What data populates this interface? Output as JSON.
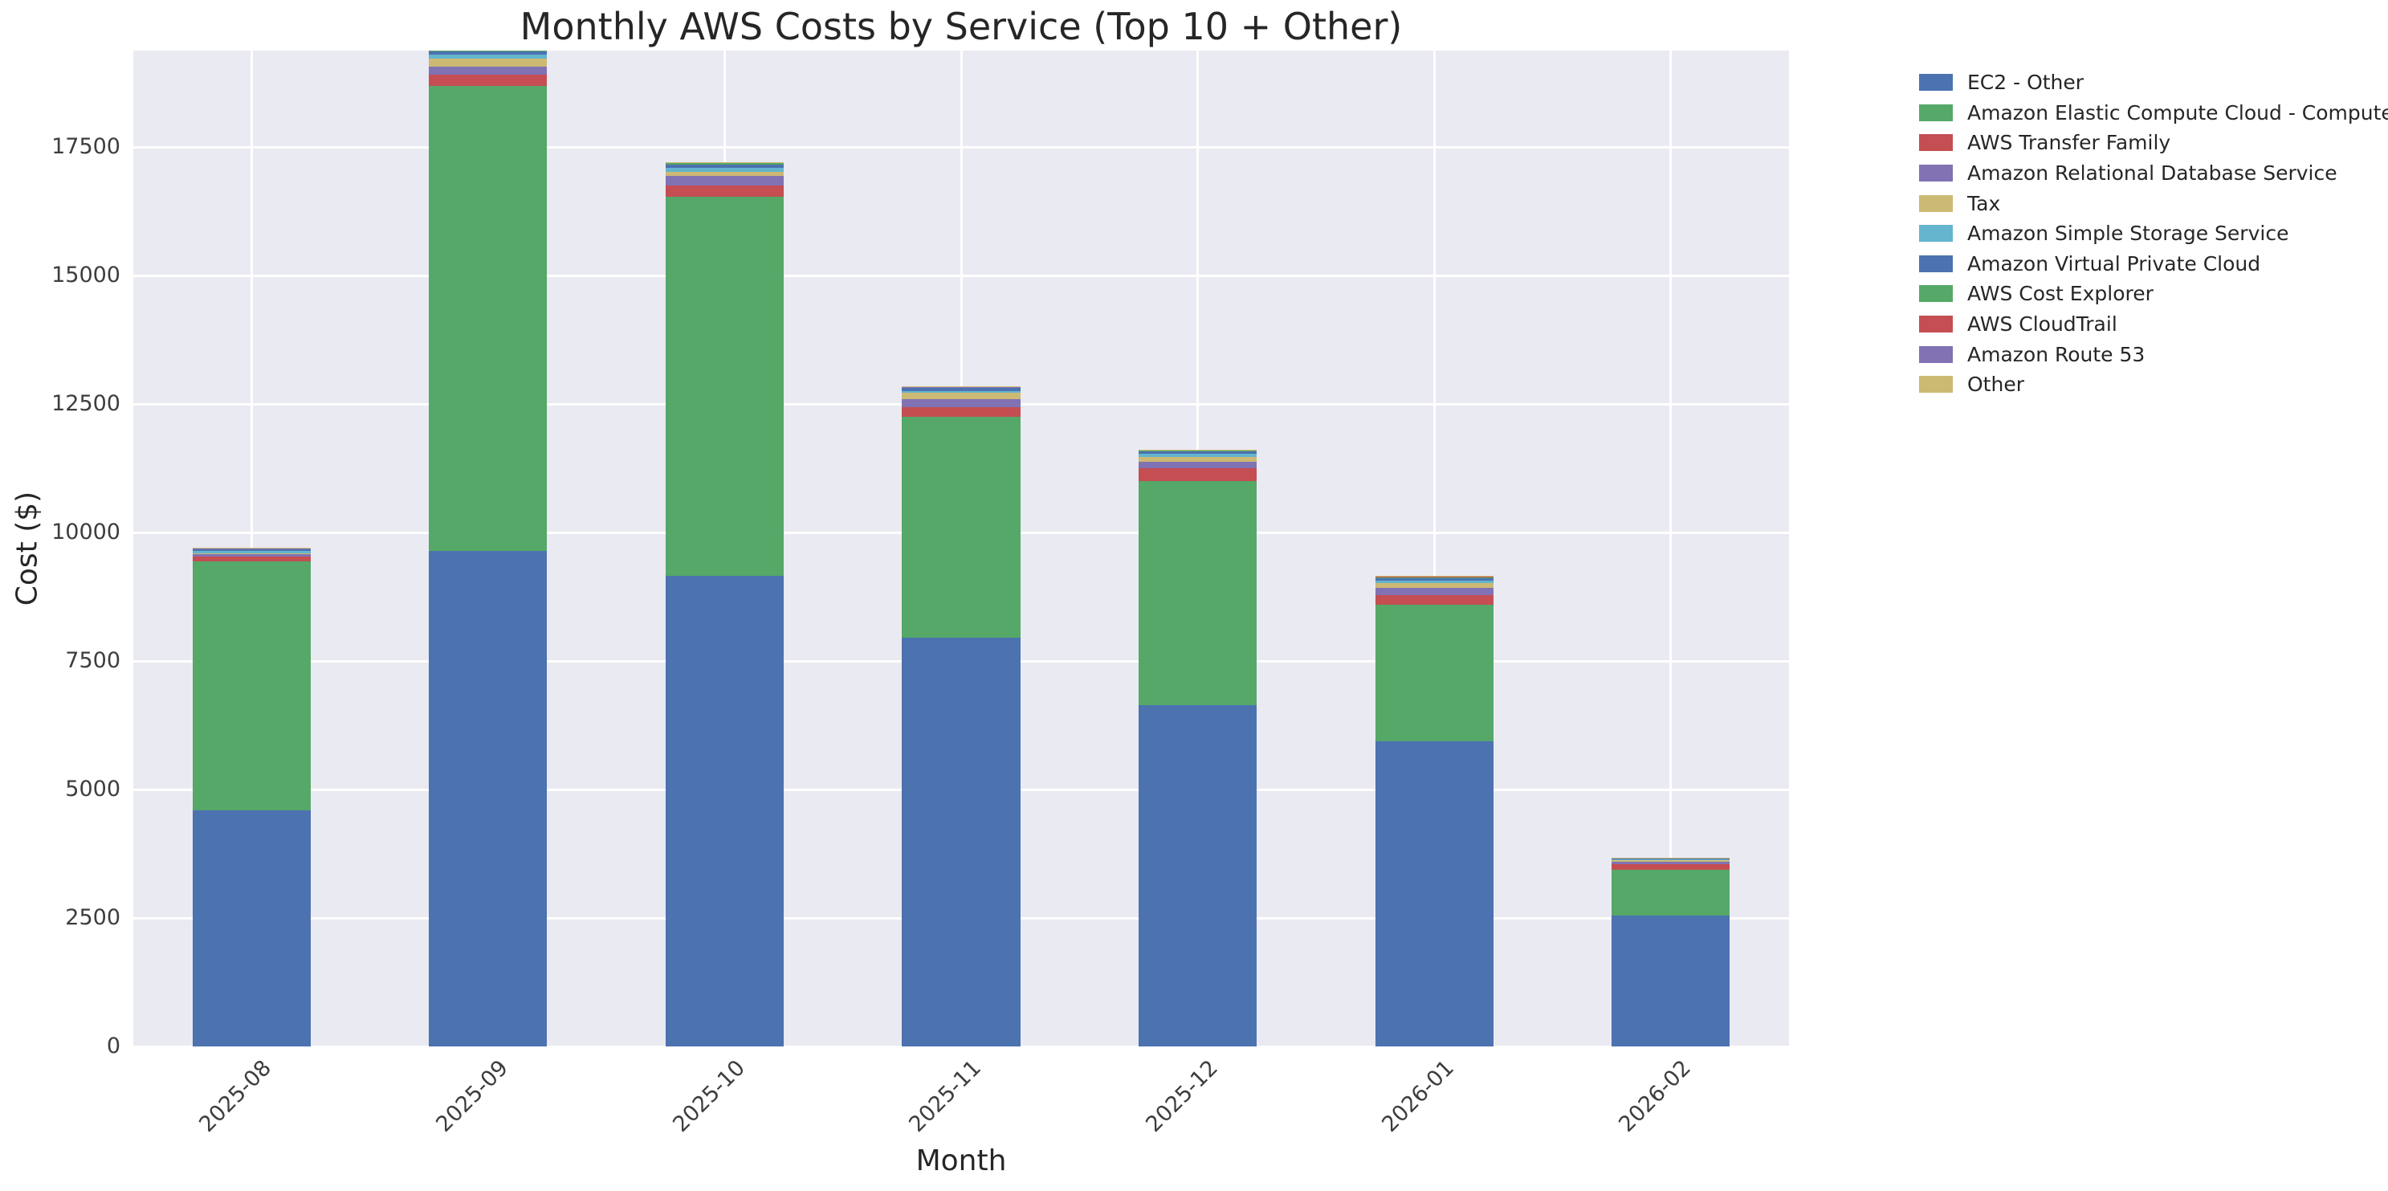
{
  "chart_data": {
    "type": "bar",
    "stacked": true,
    "title": "Monthly AWS Costs by Service (Top 10 + Other)",
    "xlabel": "Month",
    "ylabel": "Cost ($)",
    "categories": [
      "2025-08",
      "2025-09",
      "2025-10",
      "2025-11",
      "2025-12",
      "2026-01",
      "2026-02"
    ],
    "series": [
      {
        "name": "EC2 - Other",
        "color": "#4c72b0",
        "values": [
          4590,
          9640,
          9160,
          7960,
          6645,
          5930,
          2547
        ]
      },
      {
        "name": "Amazon Elastic Compute Cloud - Compute",
        "color": "#55a868",
        "values": [
          4843,
          9052,
          7367,
          4285,
          4360,
          2659,
          886
        ]
      },
      {
        "name": "AWS Transfer Family",
        "color": "#c44e52",
        "values": [
          94,
          209,
          228,
          188,
          240,
          198,
          114
        ]
      },
      {
        "name": "Amazon Relational Database Service",
        "color": "#8172b3",
        "values": [
          72,
          156,
          178,
          156,
          125,
          140,
          52
        ]
      },
      {
        "name": "Tax",
        "color": "#ccb974",
        "values": [
          2,
          161,
          88,
          125,
          104,
          88,
          31
        ]
      },
      {
        "name": "Amazon Simple Storage Service",
        "color": "#64b5cd",
        "values": [
          42,
          73,
          69,
          36,
          52,
          42,
          8
        ]
      },
      {
        "name": "Amazon Virtual Private Cloud",
        "color": "#4c72b0",
        "values": [
          42,
          78,
          67,
          67,
          63,
          63,
          31
        ]
      },
      {
        "name": "AWS Cost Explorer",
        "color": "#55a868",
        "values": [
          5,
          8,
          36,
          8,
          8,
          2,
          2
        ]
      },
      {
        "name": "AWS CloudTrail",
        "color": "#c44e52",
        "values": [
          3,
          5,
          5,
          5,
          5,
          31,
          3
        ]
      },
      {
        "name": "Amazon Route 53",
        "color": "#8172b3",
        "values": [
          2,
          3,
          3,
          3,
          3,
          3,
          2
        ]
      },
      {
        "name": "Other",
        "color": "#ccb974",
        "values": [
          2,
          3,
          3,
          5,
          5,
          3,
          2
        ]
      }
    ],
    "ytick_labels": [
      "0",
      "2500",
      "5000",
      "7500",
      "10000",
      "12500",
      "15000",
      "17500"
    ],
    "yticks": [
      0,
      2500,
      5000,
      7500,
      10000,
      12500,
      15000,
      17500
    ],
    "ylim": [
      0,
      19375
    ],
    "grid": true,
    "legend_position": "right",
    "plot_bg": "#eaeaf2",
    "grid_color": "#ffffff",
    "text_color": "#262626"
  }
}
